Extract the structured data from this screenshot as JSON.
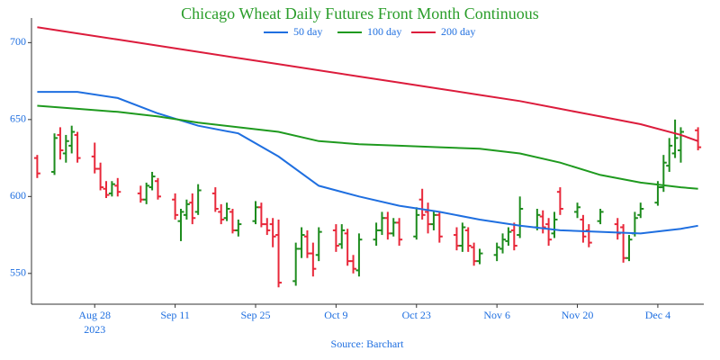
{
  "chart_data": {
    "type": "ohlc",
    "title": "Chicago Wheat Daily Futures Front Month Continuous",
    "source": "Source: Barchart",
    "up_color": "#1e8c1e",
    "down_color": "#e8283a",
    "x": [
      "2023-08-18",
      "2023-08-21",
      "2023-08-22",
      "2023-08-23",
      "2023-08-24",
      "2023-08-25",
      "2023-08-28",
      "2023-08-29",
      "2023-08-30",
      "2023-08-31",
      "2023-09-01",
      "2023-09-05",
      "2023-09-06",
      "2023-09-07",
      "2023-09-08",
      "2023-09-11",
      "2023-09-12",
      "2023-09-13",
      "2023-09-14",
      "2023-09-15",
      "2023-09-18",
      "2023-09-19",
      "2023-09-20",
      "2023-09-21",
      "2023-09-22",
      "2023-09-25",
      "2023-09-26",
      "2023-09-27",
      "2023-09-28",
      "2023-09-29",
      "2023-10-02",
      "2023-10-03",
      "2023-10-04",
      "2023-10-05",
      "2023-10-06",
      "2023-10-09",
      "2023-10-10",
      "2023-10-11",
      "2023-10-12",
      "2023-10-13",
      "2023-10-16",
      "2023-10-17",
      "2023-10-18",
      "2023-10-19",
      "2023-10-20",
      "2023-10-23",
      "2023-10-24",
      "2023-10-25",
      "2023-10-26",
      "2023-10-27",
      "2023-10-30",
      "2023-10-31",
      "2023-11-01",
      "2023-11-02",
      "2023-11-03",
      "2023-11-06",
      "2023-11-07",
      "2023-11-08",
      "2023-11-09",
      "2023-11-10",
      "2023-11-13",
      "2023-11-14",
      "2023-11-15",
      "2023-11-16",
      "2023-11-17",
      "2023-11-20",
      "2023-11-21",
      "2023-11-22",
      "2023-11-24",
      "2023-11-27",
      "2023-11-28",
      "2023-11-29",
      "2023-11-30",
      "2023-12-01",
      "2023-12-04",
      "2023-12-05",
      "2023-12-06",
      "2023-12-07",
      "2023-12-08",
      "2023-12-11"
    ],
    "open": [
      625,
      616,
      640,
      628,
      633,
      640,
      626,
      618,
      605,
      602,
      607,
      602,
      598,
      606,
      610,
      598,
      584,
      588,
      596,
      590,
      602,
      590,
      586,
      590,
      578,
      584,
      593,
      582,
      582,
      575,
      545,
      566,
      574,
      563,
      562,
      578,
      569,
      576,
      558,
      552,
      572,
      578,
      586,
      576,
      583,
      574,
      598,
      590,
      582,
      588,
      575,
      568,
      578,
      567,
      558,
      562,
      566,
      571,
      578,
      575,
      580,
      587,
      582,
      576,
      603,
      590,
      585,
      578,
      584,
      582,
      580,
      560,
      576,
      588,
      596,
      606,
      620,
      628,
      630,
      643
    ],
    "high": [
      627,
      641,
      645,
      640,
      646,
      642,
      635,
      622,
      610,
      610,
      612,
      607,
      609,
      616,
      612,
      602,
      592,
      598,
      602,
      608,
      606,
      595,
      596,
      592,
      585,
      597,
      596,
      586,
      586,
      585,
      570,
      580,
      578,
      570,
      580,
      582,
      582,
      579,
      562,
      576,
      583,
      590,
      590,
      586,
      586,
      593,
      605,
      596,
      591,
      590,
      580,
      583,
      580,
      570,
      566,
      570,
      576,
      580,
      583,
      600,
      592,
      591,
      586,
      590,
      606,
      596,
      588,
      582,
      592,
      586,
      582,
      575,
      590,
      596,
      610,
      627,
      638,
      650,
      645,
      645
    ],
    "low": [
      612,
      614,
      624,
      622,
      628,
      622,
      615,
      604,
      599,
      600,
      600,
      596,
      595,
      604,
      598,
      585,
      571,
      585,
      582,
      588,
      590,
      582,
      584,
      576,
      574,
      582,
      580,
      575,
      567,
      541,
      542,
      560,
      560,
      548,
      558,
      564,
      566,
      555,
      550,
      548,
      568,
      575,
      572,
      574,
      568,
      572,
      585,
      576,
      578,
      570,
      565,
      564,
      564,
      555,
      556,
      558,
      563,
      568,
      565,
      573,
      578,
      576,
      568,
      573,
      588,
      586,
      570,
      567,
      582,
      572,
      557,
      558,
      574,
      586,
      594,
      603,
      616,
      625,
      622,
      630
    ],
    "close": [
      615,
      638,
      630,
      636,
      642,
      625,
      618,
      606,
      601,
      608,
      603,
      598,
      607,
      613,
      600,
      588,
      590,
      595,
      586,
      604,
      592,
      585,
      592,
      578,
      582,
      593,
      582,
      578,
      574,
      544,
      566,
      575,
      563,
      553,
      577,
      568,
      578,
      558,
      553,
      572,
      578,
      586,
      576,
      583,
      572,
      588,
      588,
      582,
      588,
      574,
      568,
      580,
      568,
      558,
      563,
      567,
      572,
      577,
      568,
      592,
      588,
      580,
      572,
      585,
      592,
      593,
      574,
      570,
      590,
      576,
      560,
      572,
      586,
      592,
      606,
      622,
      633,
      638,
      642,
      632
    ],
    "series": [
      {
        "name": "50 day",
        "color": "#1f6fe0",
        "x": [
          "2023-08-18",
          "2023-08-25",
          "2023-09-01",
          "2023-09-08",
          "2023-09-15",
          "2023-09-22",
          "2023-09-29",
          "2023-10-06",
          "2023-10-13",
          "2023-10-20",
          "2023-10-27",
          "2023-11-03",
          "2023-11-10",
          "2023-11-17",
          "2023-11-24",
          "2023-12-01",
          "2023-12-08",
          "2023-12-11"
        ],
        "values": [
          668,
          668,
          664,
          654,
          646,
          641,
          626,
          607,
          600,
          594,
          590,
          585,
          581,
          578,
          577,
          576,
          579,
          581
        ]
      },
      {
        "name": "100 day",
        "color": "#1f9a1f",
        "x": [
          "2023-08-18",
          "2023-08-25",
          "2023-09-01",
          "2023-09-08",
          "2023-09-15",
          "2023-09-22",
          "2023-09-29",
          "2023-10-06",
          "2023-10-13",
          "2023-10-20",
          "2023-10-27",
          "2023-11-03",
          "2023-11-10",
          "2023-11-17",
          "2023-11-24",
          "2023-12-01",
          "2023-12-08",
          "2023-12-11"
        ],
        "values": [
          659,
          657,
          655,
          652,
          648,
          645,
          642,
          636,
          634,
          633,
          632,
          631,
          628,
          622,
          614,
          609,
          606,
          605
        ]
      },
      {
        "name": "200 day",
        "color": "#dc1c3c",
        "x": [
          "2023-08-18",
          "2023-08-25",
          "2023-09-01",
          "2023-09-08",
          "2023-09-15",
          "2023-09-22",
          "2023-09-29",
          "2023-10-06",
          "2023-10-13",
          "2023-10-20",
          "2023-10-27",
          "2023-11-03",
          "2023-11-10",
          "2023-11-17",
          "2023-11-24",
          "2023-12-01",
          "2023-12-08",
          "2023-12-11"
        ],
        "values": [
          710,
          706,
          702,
          698,
          694,
          690,
          686,
          682,
          678,
          674,
          670,
          666,
          662,
          657,
          652,
          647,
          640,
          636
        ]
      }
    ],
    "xlim": [
      "2023-08-17",
      "2023-12-12"
    ],
    "xticks": [
      {
        "value": "2023-08-28",
        "label": "Aug 28"
      },
      {
        "value": "2023-09-11",
        "label": "Sep 11"
      },
      {
        "value": "2023-09-25",
        "label": "Sep 25"
      },
      {
        "value": "2023-10-09",
        "label": "Oct 9"
      },
      {
        "value": "2023-10-23",
        "label": "Oct 23"
      },
      {
        "value": "2023-11-06",
        "label": "Nov 6"
      },
      {
        "value": "2023-11-20",
        "label": "Nov 20"
      },
      {
        "value": "2023-12-04",
        "label": "Dec 4"
      }
    ],
    "xaxis_year": "2023",
    "ylim": [
      530,
      716
    ],
    "yticks": [
      550,
      600,
      650,
      700
    ],
    "grid": false
  }
}
